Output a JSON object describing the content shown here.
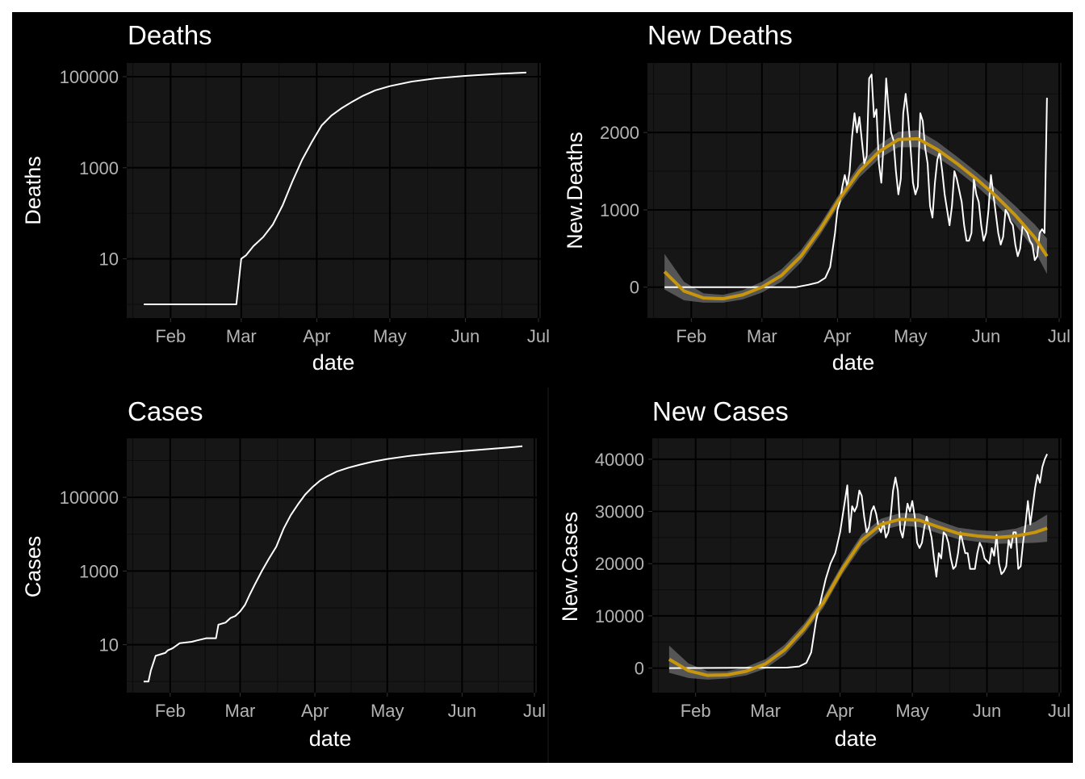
{
  "colors": {
    "page_bg": "#ffffff",
    "figure_bg": "#000000",
    "panel_bg": "#161616",
    "grid_major": "#000000",
    "grid_minor": "#0b0b0b",
    "line": "#ffffff",
    "smooth": "#c8960c",
    "ribbon": "#5c5c5c",
    "tick_text": "#b3b3b3",
    "title_text": "#ffffff"
  },
  "chart_data": [
    {
      "id": "deaths",
      "type": "line",
      "title": "Deaths",
      "xlabel": "date",
      "ylabel": "Deaths",
      "y_scale": "log10",
      "ylim": [
        0.5,
        200000
      ],
      "xlim": [
        "2020-01-14",
        "2020-07-02"
      ],
      "x_ticks": [
        "2020-02-01",
        "2020-03-01",
        "2020-04-01",
        "2020-05-01",
        "2020-06-01",
        "2020-07-01"
      ],
      "x_tick_labels": [
        "Feb",
        "Mar",
        "Apr",
        "May",
        "Jun",
        "Jul"
      ],
      "y_ticks": [
        10,
        1000,
        100000
      ],
      "y_tick_labels": [
        "10",
        "1000",
        "100000"
      ],
      "grid": true,
      "series": [
        {
          "x": [
            "2020-01-21",
            "2020-02-28",
            "2020-03-01",
            "2020-03-03",
            "2020-03-06",
            "2020-03-10",
            "2020-03-14",
            "2020-03-18",
            "2020-03-22",
            "2020-03-26",
            "2020-03-30",
            "2020-04-03",
            "2020-04-07",
            "2020-04-11",
            "2020-04-15",
            "2020-04-20",
            "2020-04-25",
            "2020-05-01",
            "2020-05-10",
            "2020-05-20",
            "2020-06-01",
            "2020-06-15",
            "2020-06-26"
          ],
          "y": [
            1,
            1,
            10,
            12,
            19,
            30,
            57,
            150,
            500,
            1500,
            3700,
            8500,
            14000,
            20000,
            27000,
            38000,
            50000,
            62000,
            78000,
            92000,
            104000,
            116000,
            123000
          ]
        }
      ]
    },
    {
      "id": "new_deaths",
      "type": "line",
      "title": "New Deaths",
      "xlabel": "date",
      "ylabel": "New.Deaths",
      "y_scale": "linear",
      "ylim": [
        -400,
        2900
      ],
      "xlim": [
        "2020-01-14",
        "2020-07-02"
      ],
      "x_ticks": [
        "2020-02-01",
        "2020-03-01",
        "2020-04-01",
        "2020-05-01",
        "2020-06-01",
        "2020-07-01"
      ],
      "x_tick_labels": [
        "Feb",
        "Mar",
        "Apr",
        "May",
        "Jun",
        "Jul"
      ],
      "y_ticks": [
        0,
        1000,
        2000
      ],
      "y_tick_labels": [
        "0",
        "1000",
        "2000"
      ],
      "grid": true,
      "series": [
        {
          "x": [
            "2020-01-21",
            "2020-03-15",
            "2020-03-20",
            "2020-03-24",
            "2020-03-27",
            "2020-03-29",
            "2020-03-31",
            "2020-04-01",
            "2020-04-02",
            "2020-04-03",
            "2020-04-04",
            "2020-04-05",
            "2020-04-06",
            "2020-04-07",
            "2020-04-08",
            "2020-04-09",
            "2020-04-10",
            "2020-04-11",
            "2020-04-12",
            "2020-04-13",
            "2020-04-14",
            "2020-04-15",
            "2020-04-16",
            "2020-04-17",
            "2020-04-18",
            "2020-04-19",
            "2020-04-20",
            "2020-04-21",
            "2020-04-22",
            "2020-04-23",
            "2020-04-24",
            "2020-04-25",
            "2020-04-26",
            "2020-04-27",
            "2020-04-28",
            "2020-04-29",
            "2020-04-30",
            "2020-05-01",
            "2020-05-02",
            "2020-05-03",
            "2020-05-04",
            "2020-05-05",
            "2020-05-06",
            "2020-05-07",
            "2020-05-08",
            "2020-05-09",
            "2020-05-10",
            "2020-05-11",
            "2020-05-12",
            "2020-05-13",
            "2020-05-14",
            "2020-05-15",
            "2020-05-16",
            "2020-05-17",
            "2020-05-18",
            "2020-05-19",
            "2020-05-20",
            "2020-05-21",
            "2020-05-22",
            "2020-05-23",
            "2020-05-24",
            "2020-05-25",
            "2020-05-26",
            "2020-05-27",
            "2020-05-28",
            "2020-05-29",
            "2020-05-30",
            "2020-05-31",
            "2020-06-01",
            "2020-06-02",
            "2020-06-03",
            "2020-06-04",
            "2020-06-05",
            "2020-06-06",
            "2020-06-07",
            "2020-06-08",
            "2020-06-09",
            "2020-06-10",
            "2020-06-11",
            "2020-06-12",
            "2020-06-13",
            "2020-06-14",
            "2020-06-15",
            "2020-06-16",
            "2020-06-17",
            "2020-06-18",
            "2020-06-19",
            "2020-06-20",
            "2020-06-21",
            "2020-06-22",
            "2020-06-23",
            "2020-06-24",
            "2020-06-25",
            "2020-06-26"
          ],
          "y": [
            0,
            0,
            30,
            60,
            120,
            260,
            700,
            1000,
            1100,
            1300,
            1450,
            1300,
            1500,
            1950,
            2250,
            2000,
            2200,
            1900,
            1600,
            1700,
            2700,
            2750,
            2200,
            2300,
            1600,
            1350,
            1900,
            2700,
            2300,
            2000,
            1900,
            1500,
            1200,
            1400,
            2250,
            2500,
            2200,
            1800,
            1350,
            1200,
            1300,
            2250,
            2150,
            1800,
            1600,
            1050,
            900,
            1350,
            1650,
            1750,
            1500,
            1200,
            1000,
            800,
            1050,
            1500,
            1400,
            1250,
            1100,
            800,
            600,
            600,
            700,
            1400,
            1200,
            1100,
            800,
            600,
            700,
            1000,
            1450,
            1200,
            950,
            700,
            550,
            650,
            1000,
            950,
            850,
            800,
            550,
            400,
            500,
            800,
            750,
            700,
            600,
            550,
            350,
            400,
            700,
            750,
            700,
            2450
          ]
        }
      ],
      "smooth": {
        "x": [
          "2020-01-21",
          "2020-01-29",
          "2020-02-06",
          "2020-02-14",
          "2020-02-22",
          "2020-03-01",
          "2020-03-09",
          "2020-03-17",
          "2020-03-25",
          "2020-04-02",
          "2020-04-10",
          "2020-04-18",
          "2020-04-26",
          "2020-05-04",
          "2020-05-12",
          "2020-05-20",
          "2020-05-28",
          "2020-06-05",
          "2020-06-13",
          "2020-06-21",
          "2020-06-26"
        ],
        "y": [
          200,
          -50,
          -140,
          -150,
          -100,
          0,
          150,
          400,
          750,
          1150,
          1500,
          1750,
          1910,
          1920,
          1780,
          1600,
          1400,
          1180,
          930,
          640,
          400
        ],
        "band_halfwidth": [
          230,
          120,
          60,
          50,
          60,
          70,
          80,
          80,
          70,
          70,
          80,
          90,
          100,
          110,
          100,
          90,
          90,
          100,
          120,
          170,
          230
        ]
      }
    },
    {
      "id": "cases",
      "type": "line",
      "title": "Cases",
      "xlabel": "date",
      "ylabel": "Cases",
      "y_scale": "log10",
      "ylim": [
        0.5,
        4000000
      ],
      "xlim": [
        "2020-01-14",
        "2020-07-02"
      ],
      "x_ticks": [
        "2020-02-01",
        "2020-03-01",
        "2020-04-01",
        "2020-05-01",
        "2020-06-01",
        "2020-07-01"
      ],
      "x_tick_labels": [
        "Feb",
        "Mar",
        "Apr",
        "May",
        "Jun",
        "Jul"
      ],
      "y_ticks": [
        10,
        1000,
        100000
      ],
      "y_tick_labels": [
        "10",
        "1000",
        "100000"
      ],
      "grid": true,
      "series": [
        {
          "x": [
            "2020-01-21",
            "2020-01-23",
            "2020-01-24",
            "2020-01-26",
            "2020-01-30",
            "2020-01-31",
            "2020-02-02",
            "2020-02-05",
            "2020-02-10",
            "2020-02-12",
            "2020-02-16",
            "2020-02-18",
            "2020-02-20",
            "2020-02-21",
            "2020-02-24",
            "2020-02-26",
            "2020-02-28",
            "2020-03-01",
            "2020-03-03",
            "2020-03-05",
            "2020-03-07",
            "2020-03-10",
            "2020-03-13",
            "2020-03-16",
            "2020-03-19",
            "2020-03-22",
            "2020-03-25",
            "2020-03-28",
            "2020-03-31",
            "2020-04-03",
            "2020-04-06",
            "2020-04-10",
            "2020-04-15",
            "2020-04-20",
            "2020-04-25",
            "2020-05-01",
            "2020-05-10",
            "2020-05-20",
            "2020-06-01",
            "2020-06-10",
            "2020-06-20",
            "2020-06-26"
          ],
          "y": [
            1,
            1,
            2,
            5,
            6,
            7,
            8,
            11,
            12,
            13,
            15,
            15,
            15,
            35,
            40,
            53,
            60,
            80,
            120,
            230,
            420,
            1000,
            2200,
            4600,
            14000,
            33000,
            65000,
            120000,
            190000,
            280000,
            370000,
            500000,
            640000,
            780000,
            930000,
            1100000,
            1330000,
            1550000,
            1800000,
            2000000,
            2250000,
            2450000
          ]
        }
      ]
    },
    {
      "id": "new_cases",
      "type": "line",
      "title": "New Cases",
      "xlabel": "date",
      "ylabel": "New.Cases",
      "y_scale": "linear",
      "ylim": [
        -4700,
        44000
      ],
      "xlim": [
        "2020-01-14",
        "2020-07-02"
      ],
      "x_ticks": [
        "2020-02-01",
        "2020-03-01",
        "2020-04-01",
        "2020-05-01",
        "2020-06-01",
        "2020-07-01"
      ],
      "x_tick_labels": [
        "Feb",
        "Mar",
        "Apr",
        "May",
        "Jun",
        "Jul"
      ],
      "y_ticks": [
        0,
        10000,
        20000,
        30000,
        40000
      ],
      "y_tick_labels": [
        "0",
        "10000",
        "20000",
        "30000",
        "40000"
      ],
      "grid": true,
      "series": [
        {
          "x": [
            "2020-01-21",
            "2020-03-10",
            "2020-03-15",
            "2020-03-18",
            "2020-03-20",
            "2020-03-22",
            "2020-03-24",
            "2020-03-26",
            "2020-03-28",
            "2020-03-30",
            "2020-04-01",
            "2020-04-02",
            "2020-04-03",
            "2020-04-04",
            "2020-04-05",
            "2020-04-06",
            "2020-04-07",
            "2020-04-08",
            "2020-04-09",
            "2020-04-10",
            "2020-04-11",
            "2020-04-12",
            "2020-04-13",
            "2020-04-14",
            "2020-04-15",
            "2020-04-16",
            "2020-04-17",
            "2020-04-18",
            "2020-04-19",
            "2020-04-20",
            "2020-04-21",
            "2020-04-22",
            "2020-04-23",
            "2020-04-24",
            "2020-04-25",
            "2020-04-26",
            "2020-04-27",
            "2020-04-28",
            "2020-04-29",
            "2020-04-30",
            "2020-05-01",
            "2020-05-02",
            "2020-05-03",
            "2020-05-04",
            "2020-05-05",
            "2020-05-06",
            "2020-05-07",
            "2020-05-08",
            "2020-05-09",
            "2020-05-10",
            "2020-05-11",
            "2020-05-12",
            "2020-05-13",
            "2020-05-14",
            "2020-05-15",
            "2020-05-16",
            "2020-05-17",
            "2020-05-18",
            "2020-05-19",
            "2020-05-20",
            "2020-05-21",
            "2020-05-22",
            "2020-05-23",
            "2020-05-24",
            "2020-05-25",
            "2020-05-26",
            "2020-05-27",
            "2020-05-28",
            "2020-05-29",
            "2020-05-30",
            "2020-05-31",
            "2020-06-01",
            "2020-06-02",
            "2020-06-03",
            "2020-06-04",
            "2020-06-05",
            "2020-06-06",
            "2020-06-07",
            "2020-06-08",
            "2020-06-09",
            "2020-06-10",
            "2020-06-11",
            "2020-06-12",
            "2020-06-13",
            "2020-06-14",
            "2020-06-15",
            "2020-06-16",
            "2020-06-17",
            "2020-06-18",
            "2020-06-19",
            "2020-06-20",
            "2020-06-21",
            "2020-06-22",
            "2020-06-23",
            "2020-06-24",
            "2020-06-25",
            "2020-06-26"
          ],
          "y": [
            0,
            100,
            300,
            1000,
            3000,
            9000,
            13000,
            17000,
            20000,
            22000,
            26000,
            29000,
            32000,
            35000,
            26000,
            31000,
            30000,
            31000,
            34000,
            33000,
            29000,
            26000,
            27000,
            30000,
            31000,
            29500,
            27000,
            26000,
            28000,
            25000,
            26000,
            29000,
            34000,
            36500,
            34000,
            26500,
            25000,
            28000,
            31500,
            30000,
            32000,
            29000,
            24000,
            23000,
            24000,
            27000,
            29000,
            27000,
            25000,
            21000,
            17500,
            22000,
            21000,
            26000,
            25500,
            24000,
            21000,
            19000,
            19500,
            22000,
            26000,
            24000,
            22000,
            22000,
            19000,
            19000,
            19000,
            22000,
            24000,
            23000,
            21000,
            20500,
            20000,
            23000,
            21500,
            25500,
            20000,
            18000,
            18500,
            19500,
            24500,
            23000,
            26000,
            26000,
            19000,
            19500,
            24000,
            27500,
            32000,
            27500,
            31000,
            34500,
            37000,
            35500,
            38500,
            40000,
            41000
          ]
        }
      ],
      "smooth": {
        "x": [
          "2020-01-21",
          "2020-01-29",
          "2020-02-06",
          "2020-02-14",
          "2020-02-22",
          "2020-03-01",
          "2020-03-09",
          "2020-03-17",
          "2020-03-25",
          "2020-04-02",
          "2020-04-10",
          "2020-04-18",
          "2020-04-26",
          "2020-05-04",
          "2020-05-12",
          "2020-05-20",
          "2020-05-28",
          "2020-06-05",
          "2020-06-13",
          "2020-06-21",
          "2020-06-26"
        ],
        "y": [
          1700,
          -500,
          -1400,
          -1300,
          -600,
          800,
          3500,
          7500,
          12500,
          19000,
          24500,
          27500,
          28500,
          28300,
          27000,
          25800,
          25300,
          25000,
          25300,
          26000,
          26800
        ],
        "band_halfwidth": [
          2600,
          1400,
          800,
          700,
          800,
          900,
          1000,
          1000,
          1000,
          1000,
          1100,
          1100,
          1200,
          1300,
          1200,
          1100,
          1100,
          1200,
          1400,
          2000,
          2600
        ]
      }
    }
  ]
}
